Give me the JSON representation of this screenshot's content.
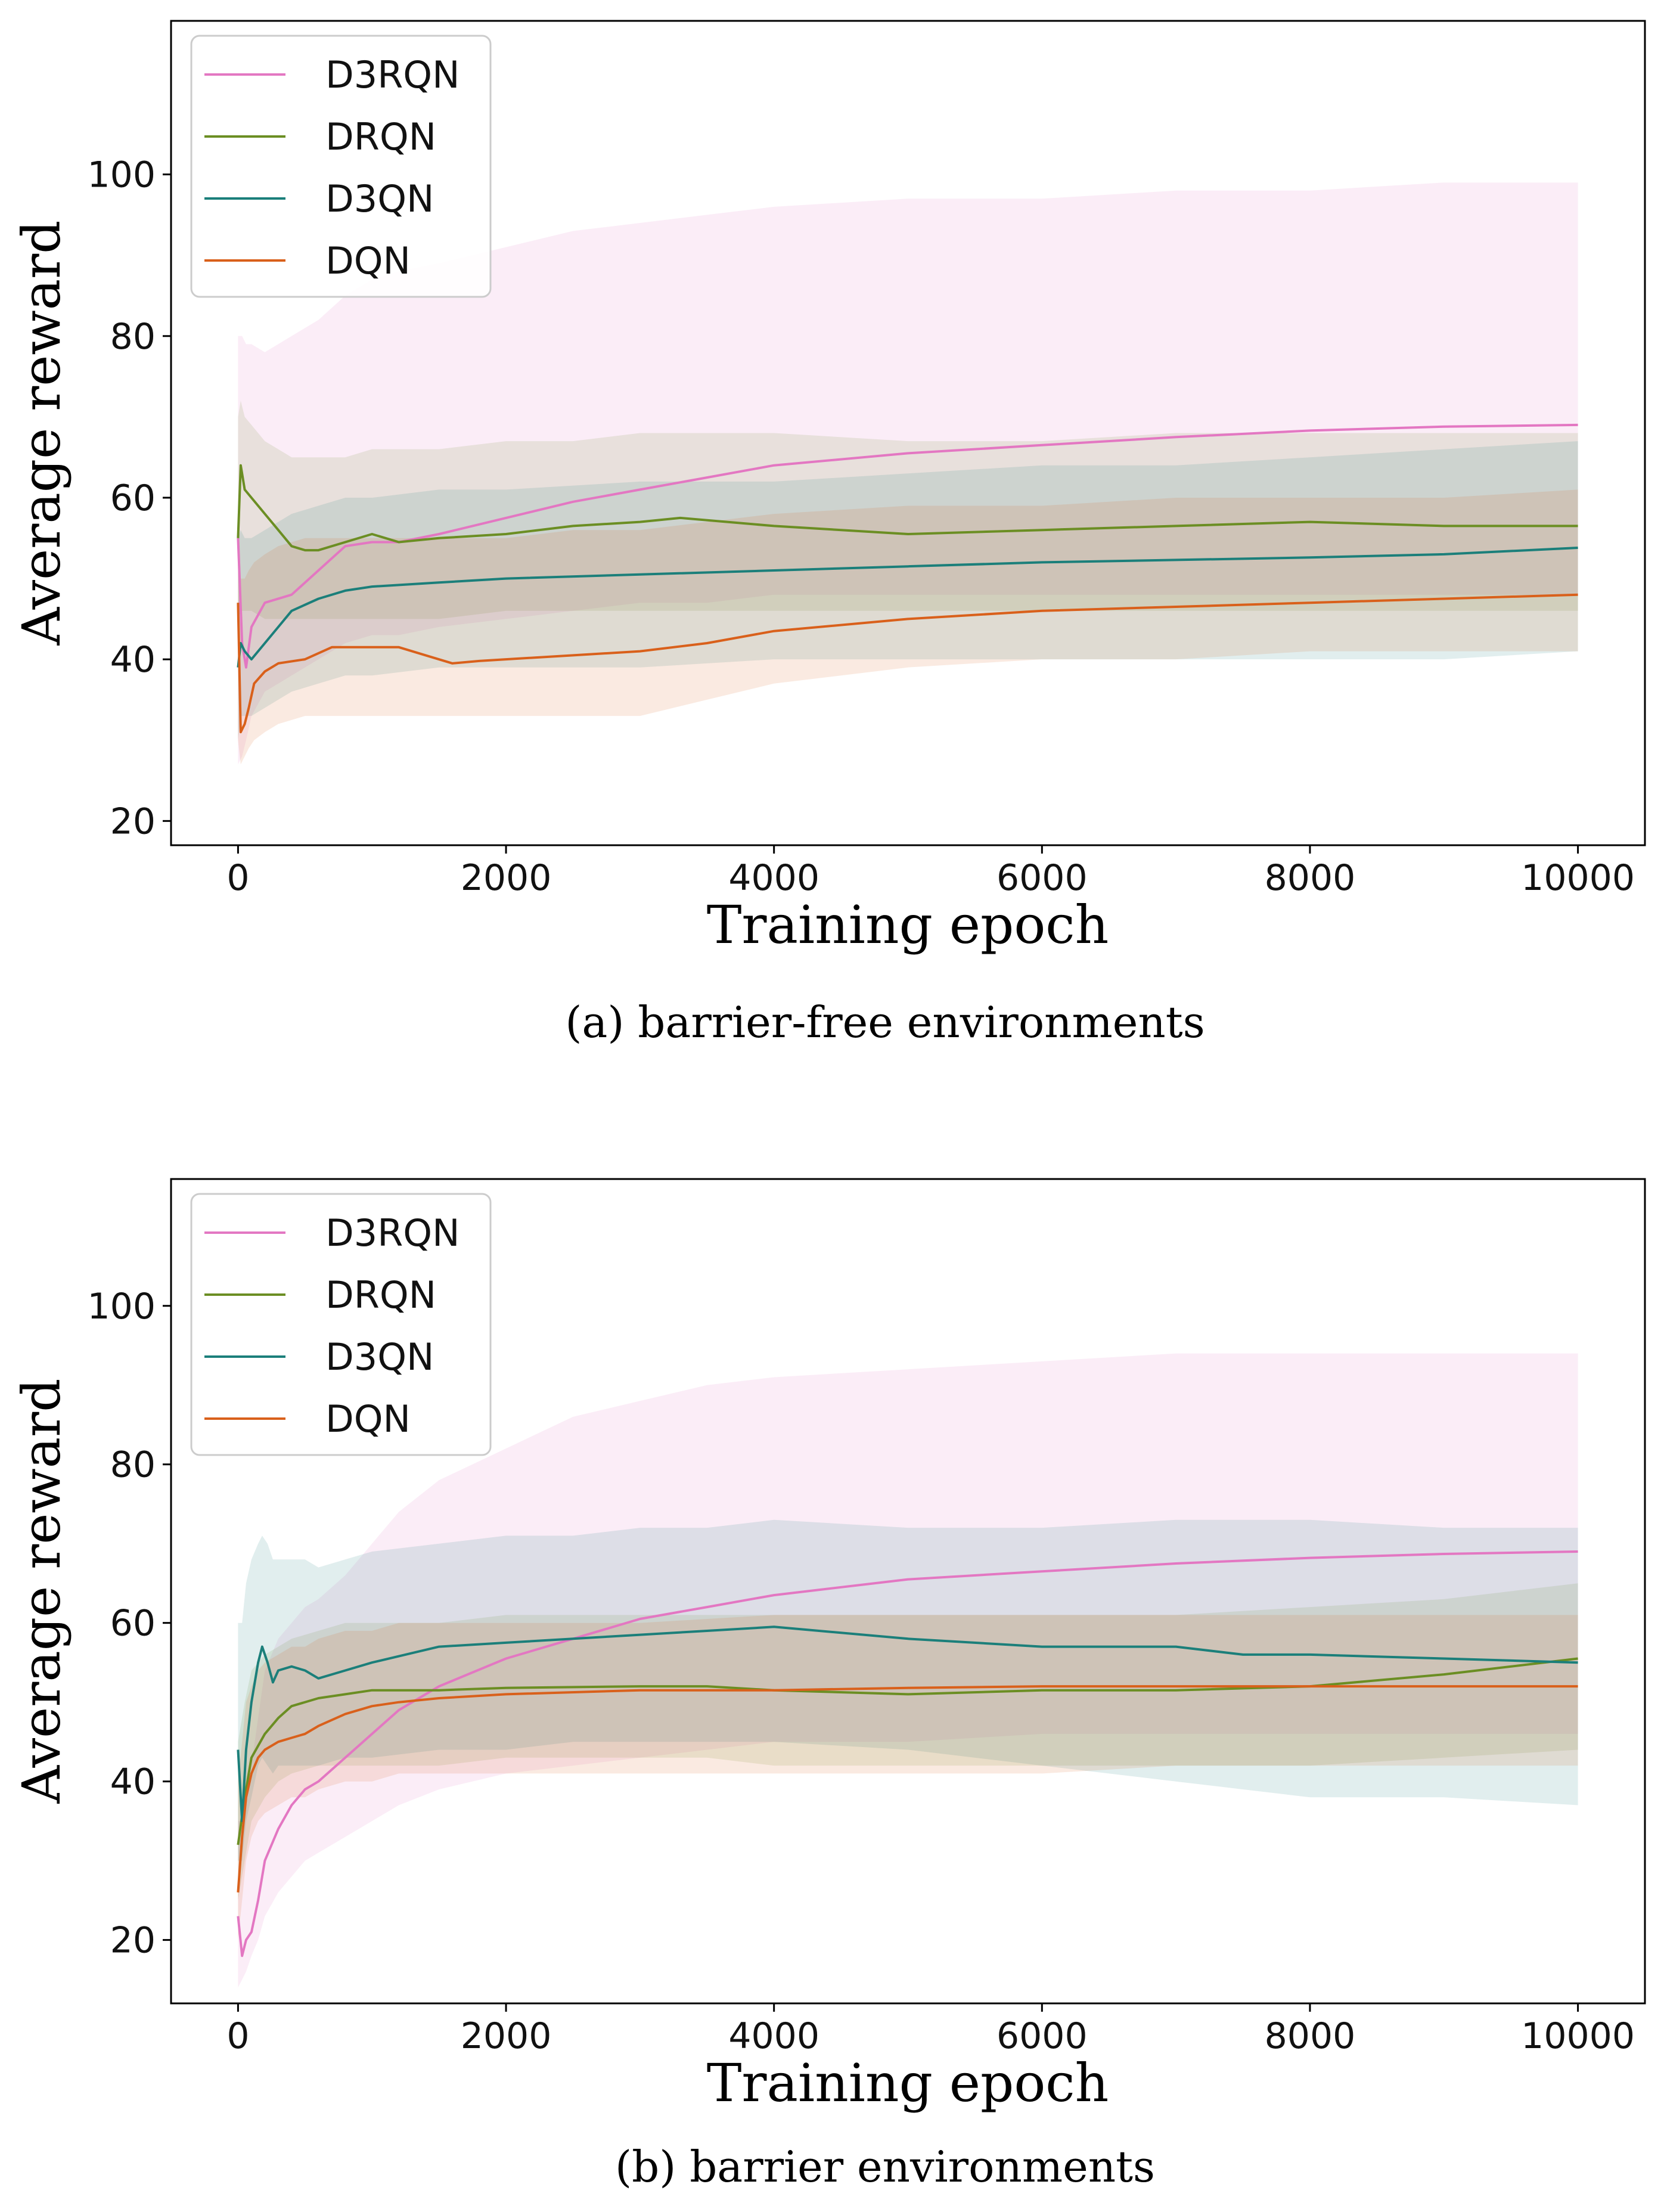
{
  "chart_data": [
    {
      "type": "line",
      "caption": "(a) barrier-free environments",
      "xlabel": "Training epoch",
      "ylabel": "Average reward",
      "xlim": [
        -500,
        10500
      ],
      "ylim": [
        17,
        119
      ],
      "xticks": [
        0,
        2000,
        4000,
        6000,
        8000,
        10000
      ],
      "yticks": [
        20,
        40,
        60,
        80,
        100
      ],
      "legend_position": "top-left",
      "series": [
        {
          "name": "D3RQN",
          "color": "#e377c2",
          "x": [
            0,
            30,
            60,
            100,
            200,
            400,
            600,
            800,
            1000,
            1200,
            1500,
            2000,
            2500,
            3000,
            3500,
            4000,
            5000,
            6000,
            7000,
            8000,
            9000,
            10000
          ],
          "y": [
            55,
            42,
            39,
            44,
            47,
            48,
            51,
            54,
            54.5,
            54.5,
            55.5,
            57.5,
            59.5,
            61,
            62.5,
            64,
            65.5,
            66.5,
            67.5,
            68.3,
            68.8,
            69
          ],
          "band_low": [
            27,
            28,
            30,
            33,
            36,
            38,
            40,
            42,
            43,
            43,
            44,
            45,
            46,
            47,
            47,
            48,
            48,
            48,
            48,
            48,
            48,
            48
          ],
          "band_high": [
            80,
            80,
            79,
            79,
            78,
            80,
            82,
            85,
            87,
            88,
            89,
            91,
            93,
            94,
            95,
            96,
            97,
            97,
            98,
            98,
            99,
            99
          ]
        },
        {
          "name": "DRQN",
          "color": "#6b8e23",
          "x": [
            0,
            20,
            50,
            100,
            200,
            300,
            400,
            500,
            600,
            800,
            1000,
            1200,
            1500,
            2000,
            2500,
            3000,
            3300,
            4000,
            5000,
            6000,
            7000,
            8000,
            9000,
            10000
          ],
          "y": [
            55,
            64,
            61,
            60,
            58,
            56,
            54,
            53.5,
            53.5,
            54.5,
            55.5,
            54.5,
            55,
            55.5,
            56.5,
            57,
            57.5,
            56.5,
            55.5,
            56,
            56.5,
            57,
            56.5,
            56.5
          ],
          "band_low": [
            45,
            46,
            46,
            46,
            45,
            45,
            45,
            45,
            45,
            45,
            45,
            45,
            45,
            46,
            46,
            46,
            46,
            46,
            46,
            46,
            46,
            46,
            46,
            46
          ],
          "band_high": [
            70,
            72,
            70,
            69,
            67,
            66,
            65,
            65,
            65,
            65,
            66,
            66,
            66,
            67,
            67,
            68,
            68,
            68,
            67,
            67,
            68,
            68,
            68,
            68
          ]
        },
        {
          "name": "D3QN",
          "color": "#1b7f7a",
          "x": [
            0,
            20,
            50,
            100,
            200,
            300,
            400,
            600,
            800,
            1000,
            1500,
            2000,
            3000,
            4000,
            5000,
            6000,
            7000,
            8000,
            9000,
            10000
          ],
          "y": [
            39,
            42,
            41,
            40,
            42,
            44,
            46,
            47.5,
            48.5,
            49,
            49.5,
            50,
            50.5,
            51,
            51.5,
            52,
            52.3,
            52.6,
            53,
            53.8
          ],
          "band_low": [
            30,
            33,
            33,
            33,
            34,
            35,
            36,
            37,
            38,
            38,
            39,
            39,
            39,
            40,
            40,
            40,
            40,
            40,
            40,
            41
          ],
          "band_high": [
            55,
            56,
            55,
            55,
            56,
            57,
            58,
            59,
            60,
            60,
            61,
            61,
            62,
            62,
            63,
            64,
            64,
            65,
            66,
            67
          ]
        },
        {
          "name": "DQN",
          "color": "#d9601b",
          "x": [
            0,
            20,
            50,
            80,
            120,
            200,
            300,
            500,
            700,
            1000,
            1200,
            1400,
            1600,
            1800,
            2000,
            2500,
            3000,
            3500,
            4000,
            5000,
            6000,
            7000,
            8000,
            9000,
            10000
          ],
          "y": [
            47,
            31,
            32,
            34,
            37,
            38.5,
            39.5,
            40,
            41.5,
            41.5,
            41.5,
            40.5,
            39.5,
            39.8,
            40,
            40.5,
            41,
            42,
            43.5,
            45,
            46,
            46.5,
            47,
            47.5,
            48
          ],
          "band_low": [
            30,
            27,
            28,
            29,
            30,
            31,
            32,
            33,
            33,
            33,
            33,
            33,
            33,
            33,
            33,
            33,
            33,
            35,
            37,
            39,
            40,
            40,
            41,
            41,
            41
          ],
          "band_high": [
            60,
            50,
            50,
            51,
            52,
            53,
            54,
            55,
            55,
            55,
            55,
            55,
            55,
            55,
            55,
            56,
            56,
            57,
            58,
            59,
            59,
            60,
            60,
            60,
            61
          ]
        }
      ]
    },
    {
      "type": "line",
      "caption": "(b) barrier environments",
      "xlabel": "Training epoch",
      "ylabel": "Average reward",
      "xlim": [
        -500,
        10500
      ],
      "ylim": [
        12,
        116
      ],
      "xticks": [
        0,
        2000,
        4000,
        6000,
        8000,
        10000
      ],
      "yticks": [
        20,
        40,
        60,
        80,
        100
      ],
      "legend_position": "top-left",
      "series": [
        {
          "name": "D3RQN",
          "color": "#e377c2",
          "x": [
            0,
            30,
            60,
            100,
            150,
            200,
            300,
            400,
            500,
            600,
            800,
            1000,
            1200,
            1500,
            2000,
            2500,
            3000,
            3500,
            4000,
            5000,
            6000,
            7000,
            8000,
            9000,
            10000
          ],
          "y": [
            23,
            18,
            20,
            21,
            25,
            30,
            34,
            37,
            39,
            40,
            43,
            46,
            49,
            52,
            55.5,
            58,
            60.5,
            62,
            63.5,
            65.5,
            66.5,
            67.5,
            68.2,
            68.7,
            69
          ],
          "band_low": [
            14,
            15,
            16,
            18,
            20,
            23,
            26,
            28,
            30,
            31,
            33,
            35,
            37,
            39,
            41,
            42,
            43,
            44,
            45,
            45,
            46,
            46,
            46,
            46,
            46
          ],
          "band_high": [
            35,
            35,
            38,
            42,
            48,
            54,
            58,
            60,
            62,
            63,
            66,
            70,
            74,
            78,
            82,
            86,
            88,
            90,
            91,
            92,
            93,
            94,
            94,
            94,
            94
          ]
        },
        {
          "name": "DRQN",
          "color": "#6b8e23",
          "x": [
            0,
            50,
            100,
            200,
            300,
            400,
            600,
            800,
            1000,
            1500,
            2000,
            3000,
            3500,
            4000,
            5000,
            6000,
            7000,
            8000,
            9000,
            10000
          ],
          "y": [
            32,
            38,
            43,
            46,
            48,
            49.5,
            50.5,
            51,
            51.5,
            51.5,
            51.8,
            52,
            52,
            51.5,
            51,
            51.5,
            51.5,
            52,
            53.5,
            55.5
          ],
          "band_low": [
            25,
            30,
            35,
            38,
            40,
            41,
            42,
            42,
            42,
            42,
            43,
            43,
            43,
            42,
            42,
            42,
            42,
            42,
            43,
            44
          ],
          "band_high": [
            45,
            50,
            54,
            56,
            57,
            58,
            59,
            60,
            60,
            60,
            61,
            61,
            61,
            61,
            61,
            61,
            61,
            62,
            63,
            65
          ]
        },
        {
          "name": "D3QN",
          "color": "#1b7f7a",
          "x": [
            0,
            30,
            60,
            100,
            150,
            180,
            220,
            260,
            300,
            400,
            500,
            600,
            800,
            1000,
            1500,
            2000,
            2500,
            3000,
            3500,
            4000,
            5000,
            6000,
            7000,
            7500,
            8000,
            9000,
            10000
          ],
          "y": [
            44,
            35,
            44,
            50,
            55,
            57,
            55,
            52.5,
            54,
            54.5,
            54,
            53,
            54,
            55,
            57,
            57.5,
            58,
            58.5,
            59,
            59.5,
            58,
            57,
            57,
            56,
            56,
            55.5,
            55
          ],
          "band_low": [
            30,
            30,
            35,
            38,
            42,
            43,
            42,
            41,
            42,
            42,
            42,
            42,
            43,
            43,
            44,
            44,
            45,
            45,
            45,
            45,
            44,
            42,
            40,
            39,
            38,
            38,
            37
          ],
          "band_high": [
            60,
            60,
            65,
            68,
            70,
            71,
            70,
            68,
            68,
            68,
            68,
            67,
            68,
            69,
            70,
            71,
            71,
            72,
            72,
            73,
            72,
            72,
            73,
            73,
            73,
            72,
            72
          ]
        },
        {
          "name": "DQN",
          "color": "#d9601b",
          "x": [
            0,
            30,
            60,
            100,
            150,
            200,
            300,
            400,
            500,
            600,
            800,
            1000,
            1200,
            1500,
            2000,
            3000,
            4000,
            5000,
            6000,
            7000,
            8000,
            9000,
            10000
          ],
          "y": [
            26,
            33,
            38,
            41,
            43,
            44,
            45,
            45.5,
            46,
            47,
            48.5,
            49.5,
            50,
            50.5,
            51,
            51.5,
            51.5,
            51.8,
            52,
            52,
            52,
            52,
            52
          ],
          "band_low": [
            20,
            25,
            30,
            33,
            35,
            36,
            37,
            38,
            38,
            39,
            40,
            40,
            41,
            41,
            41,
            41,
            41,
            41,
            41,
            42,
            42,
            42,
            42
          ],
          "band_high": [
            40,
            45,
            50,
            52,
            54,
            55,
            56,
            57,
            57,
            58,
            59,
            59,
            60,
            60,
            60,
            60,
            61,
            61,
            61,
            61,
            61,
            61,
            61
          ]
        }
      ]
    }
  ]
}
